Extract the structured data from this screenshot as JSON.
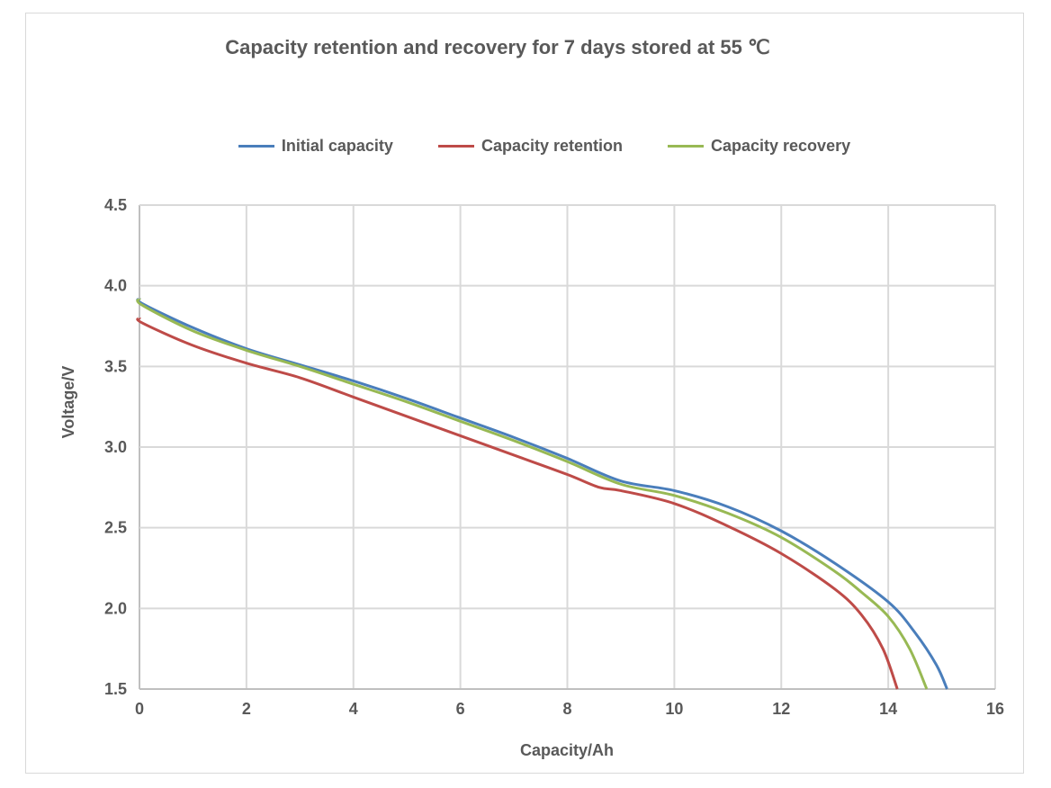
{
  "chart_data": {
    "type": "line",
    "title": "Capacity retention and recovery for 7 days stored at 55 ℃",
    "xlabel": "Capacity/Ah",
    "ylabel": "Voltage/V",
    "xlim": [
      0,
      16
    ],
    "ylim": [
      1.5,
      4.5
    ],
    "xticks": [
      "0",
      "2",
      "4",
      "6",
      "8",
      "10",
      "12",
      "14",
      "16"
    ],
    "yticks": [
      "1.5",
      "2.0",
      "2.5",
      "3.0",
      "3.5",
      "4.0",
      "4.5"
    ],
    "grid": true,
    "legend": "top",
    "series": [
      {
        "name": "Initial capacity",
        "color": "#4a7ebb",
        "x": [
          0,
          0.05,
          1,
          2,
          3,
          4,
          5,
          6,
          7,
          8,
          9,
          10,
          11,
          12,
          13,
          14,
          14.5,
          14.9,
          15.1
        ],
        "y": [
          3.92,
          3.89,
          3.74,
          3.61,
          3.51,
          3.41,
          3.3,
          3.18,
          3.06,
          2.93,
          2.79,
          2.73,
          2.63,
          2.48,
          2.28,
          2.04,
          1.85,
          1.65,
          1.5
        ]
      },
      {
        "name": "Capacity retention",
        "color": "#be4b48",
        "x": [
          0,
          0.05,
          1,
          2,
          3,
          4,
          5,
          6,
          7,
          8,
          8.6,
          9,
          10,
          11,
          12,
          13,
          13.5,
          13.9,
          14.17
        ],
        "y": [
          3.8,
          3.77,
          3.63,
          3.52,
          3.43,
          3.31,
          3.19,
          3.07,
          2.95,
          2.83,
          2.75,
          2.73,
          2.65,
          2.51,
          2.34,
          2.12,
          1.96,
          1.75,
          1.5
        ]
      },
      {
        "name": "Capacity recovery",
        "color": "#98b954",
        "x": [
          0,
          0.05,
          1,
          2,
          3,
          4,
          5,
          6,
          7,
          8,
          9,
          10,
          11,
          12,
          13,
          13.5,
          14,
          14.4,
          14.72
        ],
        "y": [
          3.92,
          3.88,
          3.72,
          3.6,
          3.5,
          3.39,
          3.28,
          3.16,
          3.04,
          2.91,
          2.77,
          2.7,
          2.59,
          2.44,
          2.23,
          2.1,
          1.95,
          1.75,
          1.5
        ]
      }
    ]
  }
}
